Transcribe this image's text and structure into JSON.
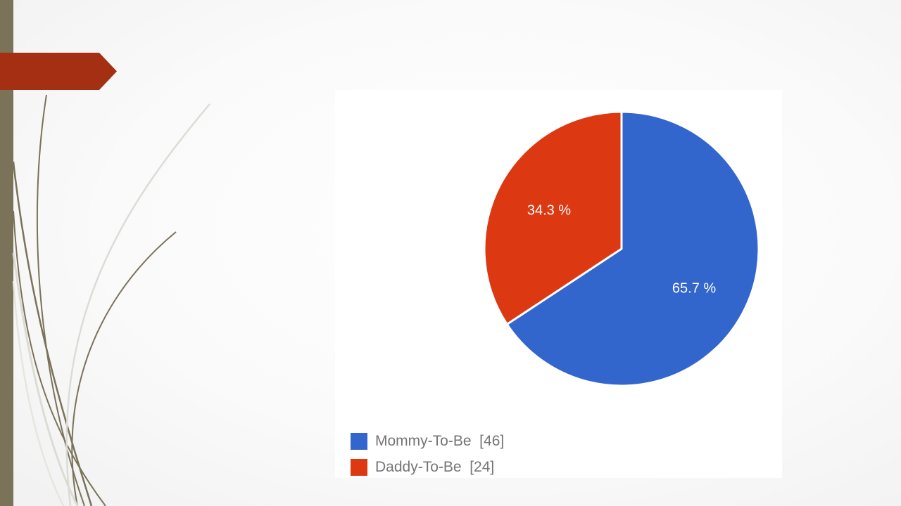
{
  "theme": {
    "left_bar_color": "#7a7259",
    "accent_tab_color": "#a52f13"
  },
  "chart_data": {
    "type": "pie",
    "categories": [
      "Mommy-To-Be",
      "Daddy-To-Be"
    ],
    "values": [
      46,
      24
    ],
    "percent_labels": [
      "65.7 %",
      "34.3 %"
    ],
    "colors": [
      "#3366cc",
      "#dc3912"
    ],
    "legend": [
      {
        "label": "Mommy-To-Be",
        "count": "[46]",
        "color": "#3366cc"
      },
      {
        "label": "Daddy-To-Be",
        "count": "[24]",
        "color": "#dc3912"
      }
    ],
    "legend_position": "bottom-left"
  }
}
